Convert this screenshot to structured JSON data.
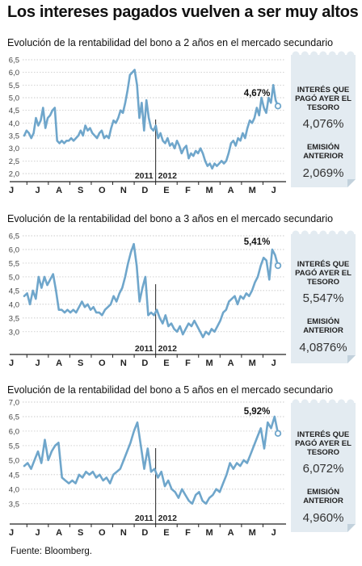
{
  "title": "Los intereses pagados vuelven a ser muy altos",
  "source": "Fuente: Bloomberg.",
  "chart_data": [
    {
      "type": "line",
      "title": "Evolución de la rentabilidad del bono a 2 años en el mercado secundario",
      "yticks": [
        "6,5",
        "6,0",
        "5,5",
        "5,0",
        "4,5",
        "4,0",
        "3,5",
        "3,0",
        "2,5",
        "2,0"
      ],
      "ylim": [
        2.0,
        6.5
      ],
      "months": [
        "J",
        "J",
        "A",
        "S",
        "O",
        "N",
        "D",
        "E",
        "F",
        "M",
        "A",
        "M",
        "J"
      ],
      "years": [
        "2011",
        "2012"
      ],
      "last_label": "4,67%",
      "panel": {
        "label1": [
          "INTERÉS QUE",
          "PAGÓ AYER EL",
          "TESORO"
        ],
        "value1": "4,076%",
        "label2": [
          "EMISIÓN",
          "ANTERIOR"
        ],
        "value2": "2,069%"
      },
      "series": [
        3.5,
        3.7,
        3.6,
        3.4,
        3.6,
        4.2,
        3.9,
        4.1,
        4.6,
        3.8,
        4.2,
        4.3,
        4.5,
        4.6,
        3.3,
        3.2,
        3.3,
        3.2,
        3.3,
        3.3,
        3.4,
        3.3,
        3.4,
        3.5,
        3.7,
        3.5,
        3.9,
        3.7,
        3.8,
        3.6,
        3.5,
        3.4,
        3.6,
        3.7,
        3.4,
        3.5,
        3.4,
        3.8,
        4.1,
        4.0,
        4.2,
        4.5,
        4.4,
        4.8,
        5.3,
        5.9,
        6.0,
        6.1,
        5.5,
        4.2,
        4.8,
        3.7,
        4.9,
        4.2,
        3.8,
        3.7,
        3.9,
        3.4,
        3.6,
        3.3,
        3.2,
        3.4,
        3.1,
        3.2,
        3.0,
        3.3,
        3.1,
        2.8,
        3.0,
        3.1,
        2.6,
        2.8,
        2.7,
        2.9,
        2.8,
        3.0,
        2.8,
        2.5,
        2.3,
        2.4,
        2.2,
        2.4,
        2.3,
        2.4,
        2.5,
        2.4,
        2.5,
        2.8,
        3.2,
        3.3,
        3.1,
        3.4,
        3.3,
        3.6,
        3.4,
        3.8,
        4.1,
        4.0,
        4.2,
        4.6,
        4.3,
        5.0,
        4.6,
        4.4,
        5.0,
        4.8,
        5.5,
        4.9,
        4.67
      ]
    },
    {
      "type": "line",
      "title": "Evolución de la rentabilidad del bono a 3 años en el mercado secundario",
      "yticks": [
        "6,5",
        "6,0",
        "5,5",
        "5,0",
        "4,5",
        "4,0",
        "3,5",
        "3,0"
      ],
      "ylim": [
        2.7,
        6.5
      ],
      "months": [
        "J",
        "J",
        "A",
        "S",
        "O",
        "N",
        "D",
        "E",
        "F",
        "M",
        "A",
        "M",
        "J"
      ],
      "years": [
        "2011",
        "2012"
      ],
      "last_label": "5,41%",
      "panel": {
        "label1": [
          "INTERÉS QUE",
          "PAGÓ AYER EL",
          "TESORO"
        ],
        "value1": "5,547%",
        "label2": [
          "EMISIÓN",
          "ANTERIOR"
        ],
        "value2": "4,0876%"
      },
      "series": [
        4.3,
        4.4,
        4.0,
        4.5,
        4.2,
        5.0,
        4.6,
        5.0,
        4.7,
        4.9,
        5.1,
        4.5,
        3.8,
        3.8,
        3.7,
        3.8,
        3.7,
        3.8,
        3.7,
        3.9,
        4.1,
        3.9,
        4.0,
        3.8,
        3.9,
        3.7,
        3.7,
        3.6,
        3.8,
        3.9,
        4.0,
        4.3,
        4.1,
        4.4,
        4.6,
        5.0,
        5.5,
        5.9,
        6.2,
        5.4,
        4.1,
        4.6,
        5.0,
        3.6,
        3.7,
        3.6,
        3.8,
        3.5,
        3.3,
        3.6,
        3.2,
        3.3,
        3.1,
        3.0,
        3.2,
        2.9,
        3.1,
        3.3,
        3.2,
        3.4,
        3.2,
        3.0,
        2.8,
        3.0,
        2.9,
        3.1,
        3.0,
        3.2,
        3.4,
        3.7,
        3.8,
        4.1,
        4.2,
        4.3,
        4.0,
        4.3,
        4.2,
        4.4,
        4.3,
        4.5,
        4.8,
        5.0,
        5.4,
        5.7,
        5.6,
        4.9,
        6.0,
        5.8,
        5.41
      ]
    },
    {
      "type": "line",
      "title": "Evolución de la rentabilidad del bono a 5 años en el mercado secundario",
      "yticks": [
        "7,0",
        "6,5",
        "6,0",
        "5,5",
        "5,0",
        "4,5",
        "4,0",
        "3,5"
      ],
      "ylim": [
        3.3,
        7.0
      ],
      "months": [
        "J",
        "J",
        "A",
        "S",
        "O",
        "N",
        "D",
        "E",
        "F",
        "M",
        "A",
        "M",
        "J"
      ],
      "years": [
        "2011",
        "2012"
      ],
      "last_label": "5,92%",
      "panel": {
        "label1": [
          "INTERÉS QUE",
          "PAGÓ AYER EL",
          "TESORO"
        ],
        "value1": "6,072%",
        "label2": [
          "EMISIÓN",
          "ANTERIOR"
        ],
        "value2": "4,960%"
      },
      "series": [
        4.8,
        4.9,
        4.7,
        5.0,
        5.3,
        4.9,
        5.7,
        5.0,
        5.3,
        5.5,
        5.6,
        4.4,
        4.3,
        4.2,
        4.3,
        4.2,
        4.5,
        4.4,
        4.6,
        4.5,
        4.6,
        4.4,
        4.5,
        4.3,
        4.4,
        4.2,
        4.5,
        4.6,
        4.7,
        5.0,
        5.3,
        5.6,
        6.0,
        6.3,
        5.5,
        4.7,
        5.4,
        4.6,
        4.7,
        4.4,
        4.6,
        4.1,
        4.3,
        4.0,
        3.9,
        3.7,
        4.0,
        3.8,
        3.6,
        3.5,
        3.8,
        3.9,
        3.6,
        3.5,
        3.7,
        3.8,
        4.0,
        3.9,
        4.2,
        4.5,
        4.9,
        4.7,
        4.9,
        4.8,
        5.0,
        4.9,
        5.2,
        5.5,
        5.8,
        6.1,
        5.4,
        6.3,
        6.1,
        6.5,
        5.92
      ]
    }
  ]
}
